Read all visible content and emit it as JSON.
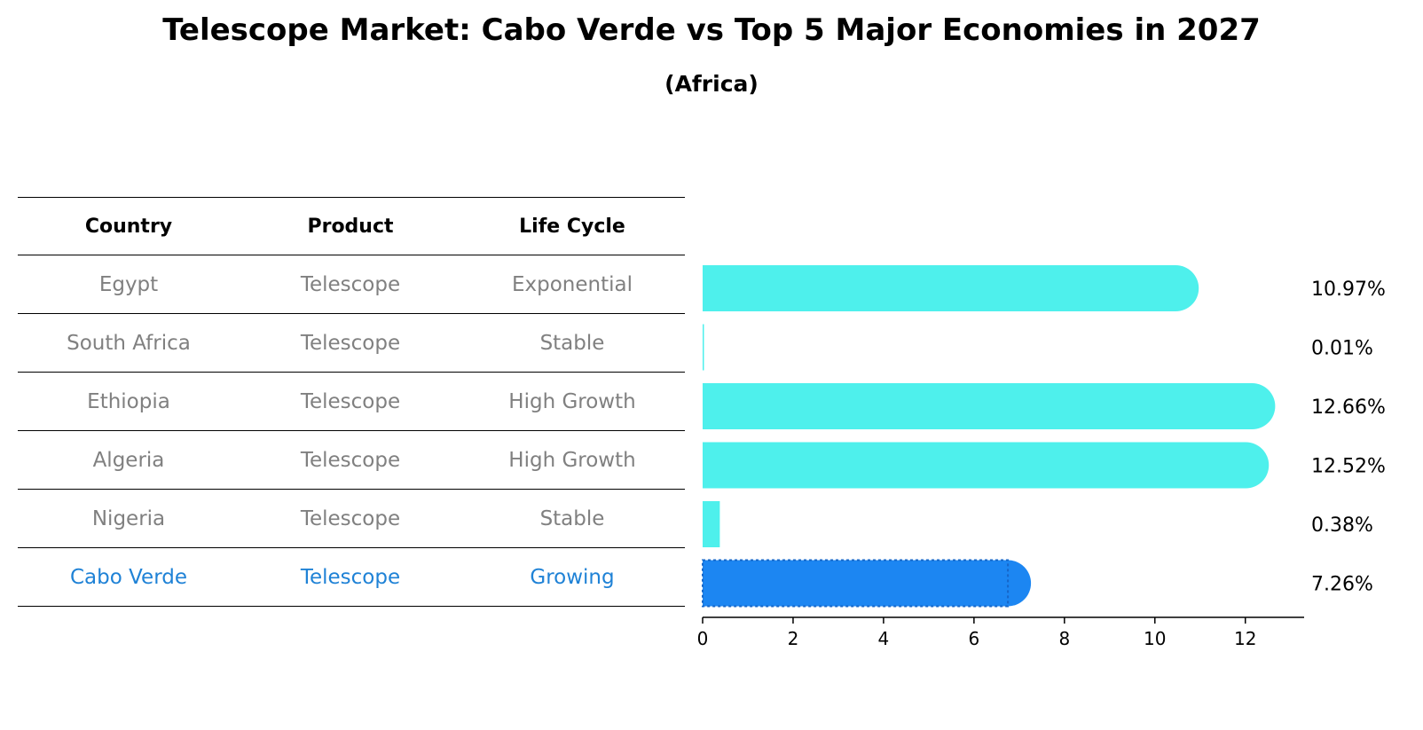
{
  "title": "Telescope Market: Cabo Verde vs Top 5 Major Economies in 2027",
  "subtitle": "(Africa)",
  "table": {
    "headers": [
      "Country",
      "Product",
      "Life Cycle"
    ],
    "rows": [
      {
        "country": "Egypt",
        "product": "Telescope",
        "life_cycle": "Exponential"
      },
      {
        "country": "South Africa",
        "product": "Telescope",
        "life_cycle": "Stable"
      },
      {
        "country": "Ethiopia",
        "product": "Telescope",
        "life_cycle": "High Growth"
      },
      {
        "country": "Algeria",
        "product": "Telescope",
        "life_cycle": "High Growth"
      },
      {
        "country": "Nigeria",
        "product": "Telescope",
        "life_cycle": "Stable"
      },
      {
        "country": "Cabo Verde",
        "product": "Telescope",
        "life_cycle": "Growing"
      }
    ]
  },
  "colors": {
    "bar": "#4ef0ec",
    "highlight": "#1c86f2",
    "highlight_text": "#1f82d6",
    "muted_text": "#808080"
  },
  "chart_data": {
    "type": "bar",
    "orientation": "horizontal",
    "categories": [
      "Egypt",
      "South Africa",
      "Ethiopia",
      "Algeria",
      "Nigeria",
      "Cabo Verde"
    ],
    "values": [
      10.97,
      0.01,
      12.66,
      12.52,
      0.38,
      7.26
    ],
    "value_labels": [
      "10.97%",
      "0.01%",
      "12.66%",
      "12.52%",
      "0.38%",
      "7.26%"
    ],
    "highlight_category": "Cabo Verde",
    "xlim": [
      0,
      13.3
    ],
    "xticks": [
      0,
      2,
      4,
      6,
      8,
      10,
      12
    ],
    "grid": false
  }
}
